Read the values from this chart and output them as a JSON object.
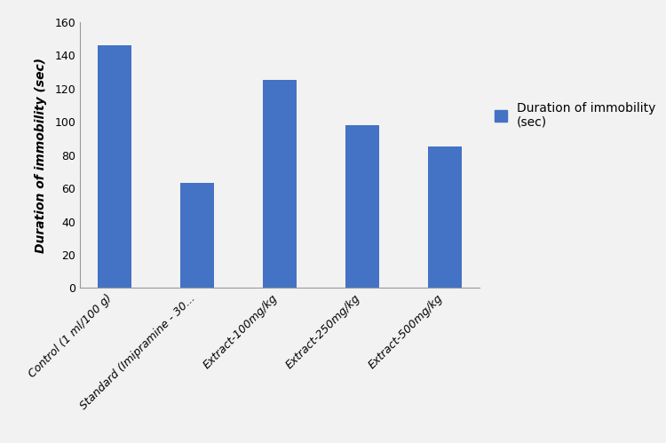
{
  "categories": [
    "Control (1 ml/100 g)",
    "Standard (Imipramine - 30...",
    "Extract-100mg/kg",
    "Extract-250mg/kg",
    "Extract-500mg/kg"
  ],
  "values": [
    146,
    63,
    125,
    98,
    85
  ],
  "bar_color": "#4472C4",
  "ylabel": "Duration of immobility (sec)",
  "ylim": [
    0,
    160
  ],
  "yticks": [
    0,
    20,
    40,
    60,
    80,
    100,
    120,
    140,
    160
  ],
  "legend_label": "Duration of immobility\n(sec)",
  "legend_color": "#4472C4",
  "background_color": "#f2f2f2",
  "plot_bg_color": "#f2f2f2",
  "bar_width": 0.4
}
